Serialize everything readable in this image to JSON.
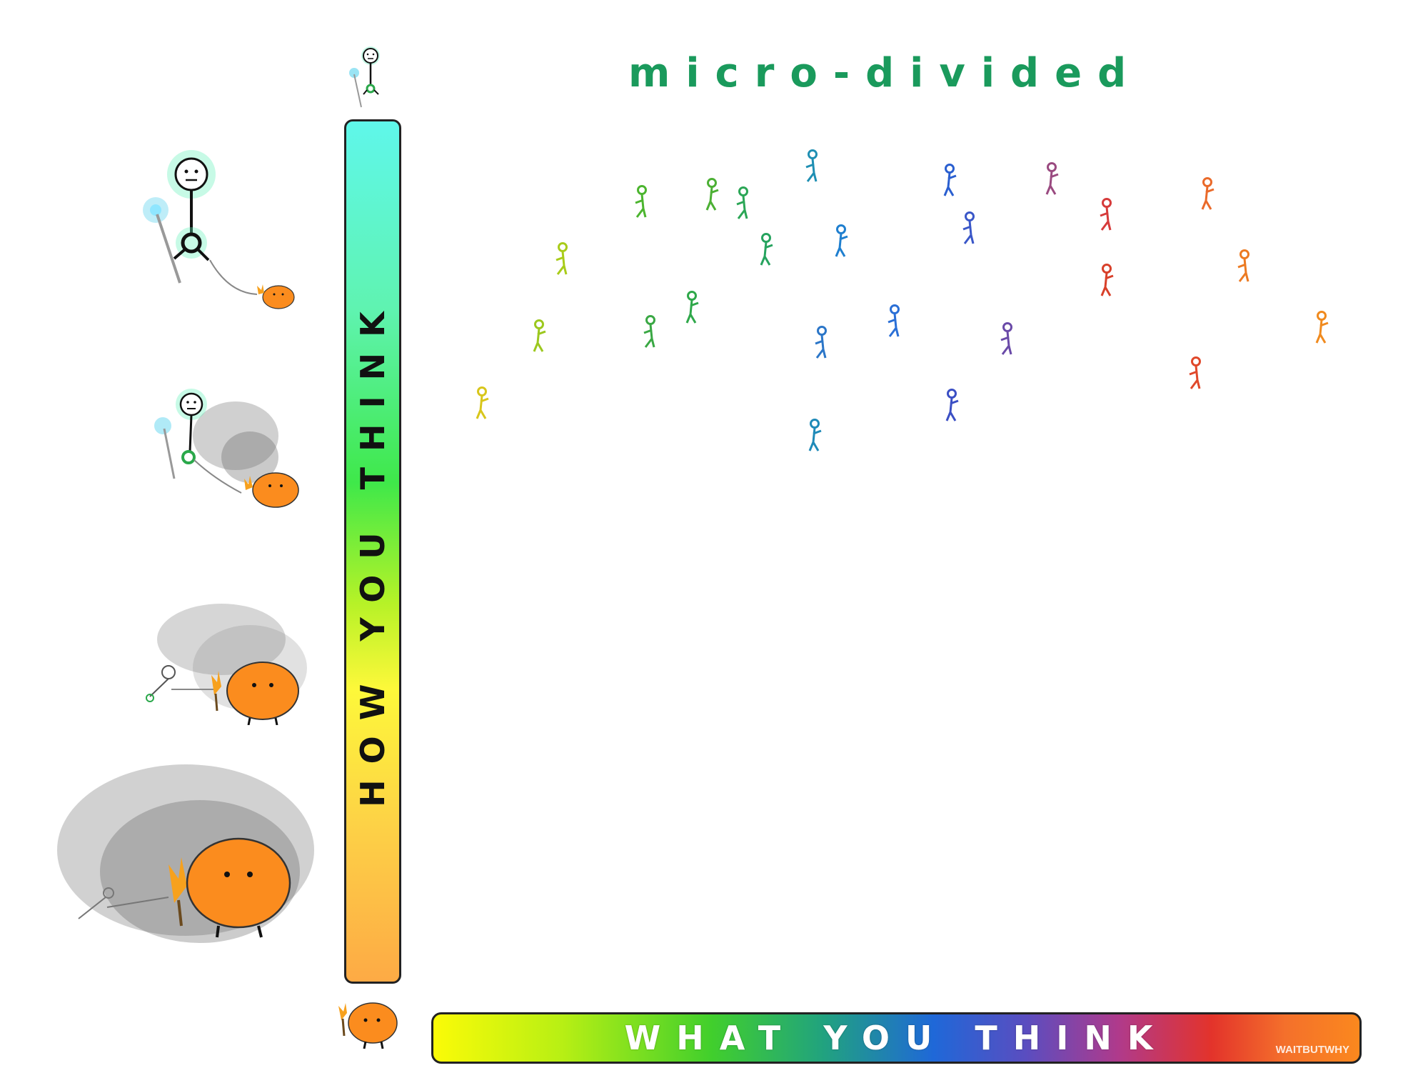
{
  "title": "micro-divided",
  "y_axis": {
    "label": "HOW YOU THINK"
  },
  "x_axis": {
    "label": "WHAT YOU THINK"
  },
  "watermark": "WAITBUTWHY",
  "colors": {
    "title": "#1a9a5c",
    "bar_border": "#222222",
    "monster": "#fb8c1e",
    "glow": "#4ff0c0"
  },
  "icons": [
    "stick-figure-icon",
    "primitive-mind-monster-icon",
    "torch-icon",
    "glow-wand-icon",
    "smoke-cloud-icon"
  ],
  "people": [
    {
      "color": "#d8c61b"
    },
    {
      "color": "#a9cc1a"
    },
    {
      "color": "#9cc81e"
    },
    {
      "color": "#4cb52f"
    },
    {
      "color": "#4cb034"
    },
    {
      "color": "#3aa844"
    },
    {
      "color": "#2fa84a"
    },
    {
      "color": "#2ba656"
    },
    {
      "color": "#26a35e"
    },
    {
      "color": "#1f8fb3"
    },
    {
      "color": "#1f7fcf"
    },
    {
      "color": "#2a6fd6"
    },
    {
      "color": "#1f8ab8"
    },
    {
      "color": "#2b76c8"
    },
    {
      "color": "#2a5fd0"
    },
    {
      "color": "#3a57c8"
    },
    {
      "color": "#3b4fc4"
    },
    {
      "color": "#6a4aa8"
    },
    {
      "color": "#9a4a80"
    },
    {
      "color": "#d63b3b"
    },
    {
      "color": "#d8402a"
    },
    {
      "color": "#e0482a"
    },
    {
      "color": "#ea6a2a"
    },
    {
      "color": "#ec7a22"
    },
    {
      "color": "#f08a1e"
    }
  ]
}
